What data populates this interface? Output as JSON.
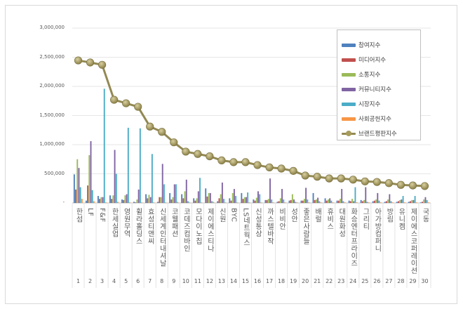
{
  "chart_data": {
    "type": "bar",
    "title": "",
    "xlabel": "",
    "ylabel": "",
    "ylim": [
      0,
      3000000
    ],
    "yticks": [
      "-",
      "500,000",
      "1,000,000",
      "1,500,000",
      "2,000,000",
      "2,500,000",
      "3,000,000"
    ],
    "ytick_values": [
      0,
      500000,
      1000000,
      1500000,
      2000000,
      2500000,
      3000000
    ],
    "legend_position": "top-right",
    "categories": [
      "한섬",
      "LF",
      "F&F",
      "한세실업",
      "영원무역",
      "휠라홀딩스",
      "효성티앤씨",
      "신세계인터내셔날",
      "코웰패션",
      "코데즈컴바인",
      "모다이노칩",
      "제이에스티나",
      "신원",
      "BYC",
      "LS네트웍스",
      "신성통상",
      "까스텔바작",
      "비비안",
      "성안",
      "좋은사람들",
      "배럴",
      "휴비스",
      "대원화성",
      "화승엔터프라이즈",
      "그리티",
      "아가방컴퍼니",
      "방림",
      "유니켐",
      "제이에스코퍼레이션",
      "국동"
    ],
    "ranks": [
      "1",
      "2",
      "3",
      "4",
      "5",
      "6",
      "7",
      "8",
      "9",
      "10",
      "11",
      "12",
      "13",
      "14",
      "15",
      "16",
      "17",
      "18",
      "19",
      "20",
      "21",
      "22",
      "23",
      "24",
      "25",
      "26",
      "27",
      "28",
      "29",
      "30"
    ],
    "series": [
      {
        "name": "참여지수",
        "type": "bar",
        "color": "#4f81bd",
        "values": [
          490000,
          40000,
          120000,
          130000,
          60000,
          20000,
          150000,
          20000,
          170000,
          150000,
          80000,
          250000,
          30000,
          80000,
          170000,
          60000,
          50000,
          20000,
          40000,
          40000,
          170000,
          80000,
          40000,
          40000,
          50000,
          30000,
          20000,
          20000,
          20000,
          10000
        ]
      },
      {
        "name": "미디어지수",
        "type": "bar",
        "color": "#c0504d",
        "values": [
          230000,
          300000,
          70000,
          70000,
          50000,
          10000,
          80000,
          100000,
          60000,
          80000,
          40000,
          110000,
          80000,
          40000,
          70000,
          40000,
          50000,
          30000,
          50000,
          40000,
          50000,
          40000,
          40000,
          30000,
          30000,
          40000,
          30000,
          30000,
          30000,
          20000
        ]
      },
      {
        "name": "소통지수",
        "type": "bar",
        "color": "#9bbb59",
        "values": [
          750000,
          820000,
          100000,
          130000,
          130000,
          60000,
          140000,
          100000,
          100000,
          200000,
          80000,
          170000,
          150000,
          170000,
          100000,
          90000,
          70000,
          80000,
          150000,
          70000,
          60000,
          60000,
          70000,
          70000,
          50000,
          60000,
          60000,
          50000,
          50000,
          60000
        ]
      },
      {
        "name": "커뮤니티지수",
        "type": "bar",
        "color": "#8064a2",
        "values": [
          600000,
          1060000,
          100000,
          910000,
          150000,
          230000,
          100000,
          670000,
          320000,
          400000,
          200000,
          170000,
          350000,
          240000,
          100000,
          200000,
          420000,
          240000,
          60000,
          260000,
          90000,
          80000,
          240000,
          30000,
          270000,
          170000,
          150000,
          60000,
          50000,
          100000
        ]
      },
      {
        "name": "시장지수",
        "type": "bar",
        "color": "#4bacc6",
        "values": [
          270000,
          220000,
          1960000,
          500000,
          1290000,
          1280000,
          840000,
          320000,
          320000,
          30000,
          430000,
          30000,
          70000,
          120000,
          180000,
          150000,
          60000,
          60000,
          20000,
          60000,
          30000,
          40000,
          30000,
          270000,
          20000,
          40000,
          30000,
          120000,
          120000,
          50000
        ]
      },
      {
        "name": "사회공헌지수",
        "type": "bar",
        "color": "#f79646",
        "values": [
          70000,
          30000,
          10000,
          20000,
          10000,
          10000,
          10000,
          10000,
          20000,
          10000,
          10000,
          20000,
          10000,
          10000,
          10000,
          10000,
          10000,
          10000,
          10000,
          10000,
          10000,
          10000,
          10000,
          10000,
          10000,
          10000,
          10000,
          10000,
          10000,
          10000
        ]
      },
      {
        "name": "브랜드평판지수",
        "type": "line",
        "color": "#938953",
        "values": [
          2445000,
          2410000,
          2370000,
          1770000,
          1710000,
          1650000,
          1310000,
          1220000,
          1040000,
          880000,
          840000,
          800000,
          730000,
          700000,
          700000,
          650000,
          610000,
          590000,
          550000,
          470000,
          450000,
          420000,
          420000,
          400000,
          370000,
          360000,
          340000,
          310000,
          300000,
          290000
        ]
      }
    ]
  }
}
